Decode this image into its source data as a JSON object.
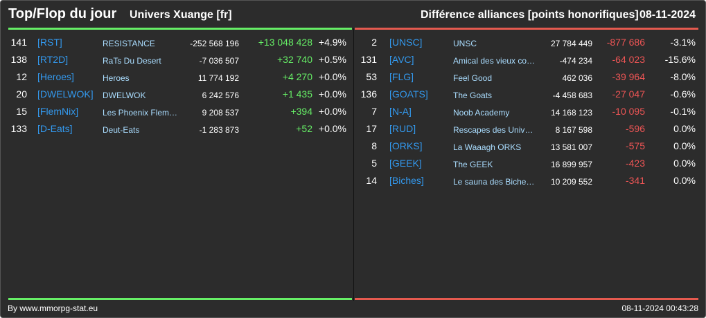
{
  "header": {
    "title": "Top/Flop du jour",
    "univers": "Univers Xuange [fr]",
    "subtitle": "Différence alliances [points honorifiques]",
    "date": "08-11-2024"
  },
  "colors": {
    "positive": "#66ee66",
    "negative": "#e55a4f",
    "tag": "#3399ee",
    "name": "#aaddff"
  },
  "top": [
    {
      "rank": "141",
      "tag": "[RST]",
      "name": "RESISTANCE",
      "points": "-252 568 196",
      "delta": "+13 048 428",
      "pct": "+4.9%"
    },
    {
      "rank": "138",
      "tag": "[RT2D]",
      "name": "RaTs Du Desert",
      "points": "-7 036 507",
      "delta": "+32 740",
      "pct": "+0.5%"
    },
    {
      "rank": "12",
      "tag": "[Heroes]",
      "name": "Heroes",
      "points": "11 774 192",
      "delta": "+4 270",
      "pct": "+0.0%"
    },
    {
      "rank": "20",
      "tag": "[DWELWOK]",
      "name": "DWELWOK",
      "points": "6 242 576",
      "delta": "+1 435",
      "pct": "+0.0%"
    },
    {
      "rank": "15",
      "tag": "[FlemNix]",
      "name": "Les Phoenix Flem…",
      "points": "9 208 537",
      "delta": "+394",
      "pct": "+0.0%"
    },
    {
      "rank": "133",
      "tag": "[D-Eats]",
      "name": "Deut-Eats",
      "points": "-1 283 873",
      "delta": "+52",
      "pct": "+0.0%"
    }
  ],
  "flop": [
    {
      "rank": "2",
      "tag": "[UNSC]",
      "name": "UNSC",
      "points": "27 784 449",
      "delta": "-877 686",
      "pct": "-3.1%"
    },
    {
      "rank": "131",
      "tag": "[AVC]",
      "name": "Amical des vieux co…",
      "points": "-474 234",
      "delta": "-64 023",
      "pct": "-15.6%"
    },
    {
      "rank": "53",
      "tag": "[FLG]",
      "name": "Feel Good",
      "points": "462 036",
      "delta": "-39 964",
      "pct": "-8.0%"
    },
    {
      "rank": "136",
      "tag": "[GOATS]",
      "name": "The Goats",
      "points": "-4 458 683",
      "delta": "-27 047",
      "pct": "-0.6%"
    },
    {
      "rank": "7",
      "tag": "[N-A]",
      "name": "Noob Academy",
      "points": "14 168 123",
      "delta": "-10 095",
      "pct": "-0.1%"
    },
    {
      "rank": "17",
      "tag": "[RUD]",
      "name": "Rescapes des Univ…",
      "points": "8 167 598",
      "delta": "-596",
      "pct": "0.0%"
    },
    {
      "rank": "8",
      "tag": "[ORKS]",
      "name": "La Waaagh ORKS",
      "points": "13 581 007",
      "delta": "-575",
      "pct": "0.0%"
    },
    {
      "rank": "5",
      "tag": "[GEEK]",
      "name": "The GEEK",
      "points": "16 899 957",
      "delta": "-423",
      "pct": "0.0%"
    },
    {
      "rank": "14",
      "tag": "[Biches]",
      "name": "Le sauna des Biche…",
      "points": "10 209 552",
      "delta": "-341",
      "pct": "0.0%"
    }
  ],
  "footer": {
    "credit": "By www.mmorpg-stat.eu",
    "timestamp": "08-11-2024 00:43:28"
  }
}
